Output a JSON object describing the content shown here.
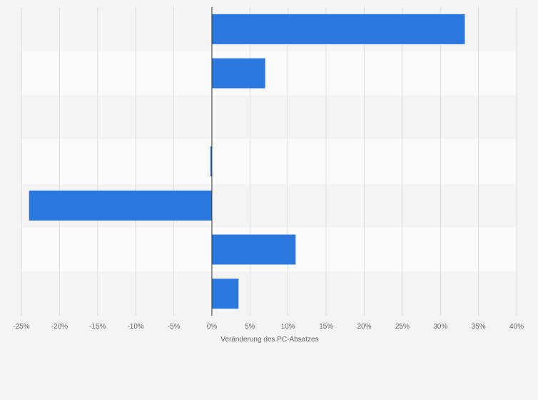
{
  "chart_data": {
    "type": "bar",
    "orientation": "horizontal",
    "categories": [
      "",
      "",
      "",
      "",
      "",
      "",
      ""
    ],
    "values": [
      33.2,
      7.0,
      null,
      -0.2,
      -24.0,
      11.0,
      3.5
    ],
    "xlabel": "Veränderung des PC-Absatzes",
    "ylabel": "",
    "xlim": [
      -25,
      40
    ],
    "xticks": [
      -25,
      -20,
      -15,
      -10,
      -5,
      0,
      5,
      10,
      15,
      20,
      25,
      30,
      35,
      40
    ],
    "tick_labels": [
      "-25%",
      "-20%",
      "-15%",
      "-10%",
      "-5%",
      "0%",
      "5%",
      "10%",
      "15%",
      "20%",
      "25%",
      "30%",
      "35%",
      "40%"
    ],
    "grid": true,
    "legend": "none",
    "bar_color": "#2a78de",
    "band_colors": [
      "#f4f4f4",
      "#fafafa"
    ],
    "gridline_color": "#dddddd",
    "zero_line_color": "#333333"
  }
}
